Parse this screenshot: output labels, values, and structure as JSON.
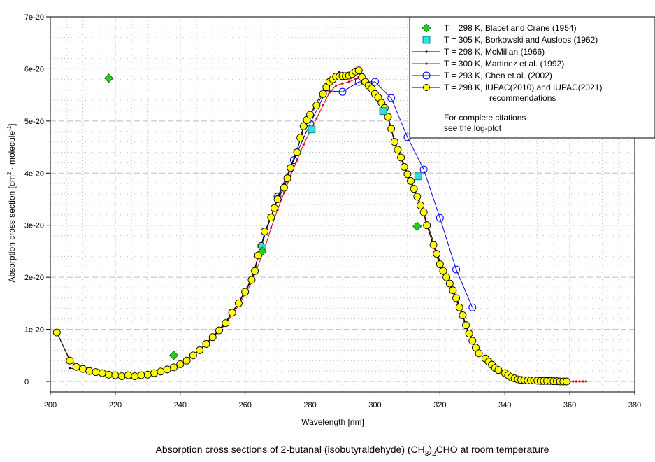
{
  "chart_data": {
    "type": "line",
    "title": "Absorption cross sections of 2-butanal (isobutyraldehyde) (CH3)2CHO  at room temperature",
    "title_parts": {
      "pre": "Absorption cross sections of 2-butanal (isobutyraldehyde) (CH",
      "sub1": "3",
      "mid": ")",
      "sub2": "2",
      "post": "CHO  at room temperature"
    },
    "xlabel": "Wavelength [nm]",
    "ylabel_parts": {
      "pre": "Absorption cross section [cm",
      "sup1": "2",
      "mid": " · molecule",
      "sup2": "-1",
      "post": "]"
    },
    "xlim": [
      200,
      380
    ],
    "ylim": [
      -0.2,
      7
    ],
    "y_unit": "1e-20",
    "x_ticks": [
      "200",
      "220",
      "240",
      "260",
      "280",
      "300",
      "320",
      "340",
      "360",
      "380"
    ],
    "y_ticks": [
      "0",
      "1e-20",
      "2e-20",
      "3e-20",
      "4e-20",
      "5e-20",
      "6e-20",
      "7e-20"
    ],
    "grid": true,
    "legend_position": "top-right",
    "legend_note": [
      "For complete citations",
      "see the log-plot"
    ],
    "series": [
      {
        "name": "T = 298 K, Blacet and Crane (1954)",
        "style": "diamond",
        "color": "#22cc22",
        "x": [
          218,
          238,
          265.3,
          313
        ],
        "y": [
          5.82,
          0.5,
          2.5,
          2.98
        ]
      },
      {
        "name": "T = 305 K, Borkowski and Ausloos (1962)",
        "style": "square",
        "color": "#33dddd",
        "x": [
          265.3,
          280.5,
          302.5,
          313.3
        ],
        "y": [
          2.57,
          4.84,
          5.19,
          3.94
        ]
      },
      {
        "name": "T =  298 K, McMillan (1966)",
        "style": "line-dot",
        "color": "#000000",
        "x": [
          206,
          208,
          210,
          214,
          218,
          222,
          226,
          230,
          234,
          238,
          242,
          246,
          250,
          254,
          258,
          262,
          264,
          266,
          268,
          270,
          272,
          274,
          276,
          278,
          280,
          282,
          284,
          286,
          287,
          288,
          289,
          290,
          291,
          292,
          293,
          294,
          295,
          296,
          297,
          298,
          300,
          302,
          304,
          306,
          308,
          310,
          312,
          314,
          316,
          318,
          320,
          322,
          324,
          326,
          328,
          330,
          332,
          334,
          336,
          338,
          340,
          344,
          348,
          352,
          356,
          359
        ],
        "y": [
          0.26,
          0.23,
          0.22,
          0.17,
          0.14,
          0.11,
          0.11,
          0.13,
          0.18,
          0.27,
          0.41,
          0.61,
          0.86,
          1.14,
          1.52,
          1.97,
          2.4,
          2.85,
          3.18,
          3.52,
          3.78,
          4.12,
          4.45,
          4.85,
          5.14,
          5.35,
          5.58,
          5.78,
          5.85,
          5.9,
          5.93,
          5.92,
          5.9,
          5.92,
          5.95,
          5.97,
          5.98,
          5.85,
          5.77,
          5.7,
          5.54,
          5.37,
          5.1,
          4.62,
          4.32,
          4.0,
          3.72,
          3.42,
          3.05,
          2.68,
          2.3,
          2.02,
          1.78,
          1.45,
          1.1,
          0.8,
          0.55,
          0.44,
          0.32,
          0.22,
          0.16,
          0.05,
          0.02,
          0.01,
          0.0,
          0.0
        ]
      },
      {
        "name": "T = 300 K, Martinez et al. (1992)",
        "style": "line-dot",
        "color": "#e00000",
        "x": [
          202,
          206,
          210,
          214,
          218,
          222,
          226,
          230,
          234,
          238,
          242,
          246,
          250,
          254,
          258,
          262,
          266,
          268,
          270,
          272,
          274,
          276,
          278,
          280,
          282,
          284,
          286,
          288,
          290,
          292,
          294,
          295,
          296,
          298,
          300,
          302,
          304,
          306,
          308,
          310,
          312,
          314,
          316,
          318,
          320,
          322,
          324,
          326,
          328,
          330,
          332,
          334,
          336,
          338,
          340,
          344,
          348,
          352,
          356,
          360,
          361,
          362,
          363,
          364,
          365
        ],
        "y": [
          0.94,
          0.42,
          0.24,
          0.18,
          0.13,
          0.11,
          0.1,
          0.12,
          0.17,
          0.26,
          0.4,
          0.6,
          0.84,
          1.1,
          1.46,
          1.9,
          2.55,
          2.95,
          3.3,
          3.62,
          3.95,
          4.25,
          4.55,
          4.8,
          5.05,
          5.3,
          5.55,
          5.68,
          5.72,
          5.75,
          5.8,
          5.85,
          5.78,
          5.65,
          5.5,
          5.32,
          5.05,
          4.6,
          4.28,
          3.95,
          3.68,
          3.38,
          3.0,
          2.6,
          2.22,
          1.95,
          1.72,
          1.4,
          1.05,
          0.78,
          0.54,
          0.44,
          0.32,
          0.22,
          0.16,
          0.05,
          0.02,
          0.01,
          0.0,
          0.0,
          0.0,
          0.0,
          0.0,
          0.0,
          0.0
        ]
      },
      {
        "name": "T = 293 K, Chen et al. (2002)",
        "style": "line-circle",
        "color": "#0000ee",
        "x": [
          265,
          270,
          275,
          280,
          285,
          290,
          295,
          300,
          305,
          310,
          315,
          320,
          325,
          330
        ],
        "y": [
          2.6,
          3.55,
          4.25,
          4.95,
          5.58,
          5.56,
          5.75,
          5.75,
          5.44,
          4.69,
          4.07,
          3.14,
          2.15,
          1.42
        ]
      },
      {
        "name": "T = 298 K, IUPAC(2010) and IUPAC(2021)",
        "name_line2": "recommendations",
        "style": "line-circle-filled",
        "color": "#ffff00",
        "x": [
          202,
          206,
          208,
          210,
          212,
          214,
          216,
          218,
          220,
          222,
          224,
          226,
          228,
          230,
          232,
          234,
          236,
          238,
          240,
          242,
          244,
          246,
          248,
          250,
          252,
          254,
          256,
          258,
          260,
          262,
          263,
          264,
          265,
          266,
          268,
          269,
          270,
          272,
          273,
          274,
          276,
          277,
          278,
          279,
          280,
          282,
          284,
          285,
          286,
          287,
          288,
          289,
          290,
          291,
          292,
          293,
          294,
          295,
          296,
          297,
          298,
          299,
          300,
          301,
          302,
          303,
          304,
          305,
          306,
          307,
          308,
          309,
          310,
          311,
          312,
          313,
          314,
          315,
          316,
          318,
          319,
          320,
          321,
          322,
          323,
          324,
          325,
          326,
          327,
          328,
          329,
          330,
          331,
          332,
          334,
          335,
          336,
          337,
          338,
          340,
          341,
          342,
          343,
          344,
          345,
          346,
          347,
          348,
          349,
          350,
          351,
          352,
          353,
          354,
          355,
          356,
          357,
          358,
          359
        ],
        "y": [
          0.94,
          0.4,
          0.28,
          0.24,
          0.2,
          0.18,
          0.16,
          0.13,
          0.12,
          0.1,
          0.12,
          0.1,
          0.12,
          0.13,
          0.16,
          0.19,
          0.23,
          0.27,
          0.33,
          0.4,
          0.5,
          0.6,
          0.72,
          0.85,
          0.98,
          1.12,
          1.32,
          1.5,
          1.72,
          1.95,
          2.12,
          2.42,
          2.6,
          2.88,
          3.15,
          3.33,
          3.5,
          3.72,
          3.9,
          4.1,
          4.4,
          4.68,
          4.9,
          5.02,
          5.12,
          5.3,
          5.52,
          5.65,
          5.75,
          5.8,
          5.85,
          5.85,
          5.86,
          5.86,
          5.87,
          5.9,
          5.95,
          5.97,
          5.84,
          5.75,
          5.68,
          5.62,
          5.52,
          5.45,
          5.35,
          5.25,
          5.08,
          4.85,
          4.6,
          4.45,
          4.3,
          4.12,
          3.98,
          3.85,
          3.7,
          3.55,
          3.38,
          3.25,
          3.0,
          2.62,
          2.45,
          2.25,
          2.12,
          2.0,
          1.88,
          1.75,
          1.6,
          1.42,
          1.27,
          1.08,
          0.92,
          0.78,
          0.65,
          0.54,
          0.44,
          0.38,
          0.32,
          0.26,
          0.22,
          0.16,
          0.12,
          0.08,
          0.06,
          0.04,
          0.03,
          0.025,
          0.02,
          0.02,
          0.02,
          0.015,
          0.01,
          0.01,
          0.01,
          0.01,
          0.005,
          0.005,
          0.0,
          0.0,
          0.0
        ]
      }
    ]
  }
}
